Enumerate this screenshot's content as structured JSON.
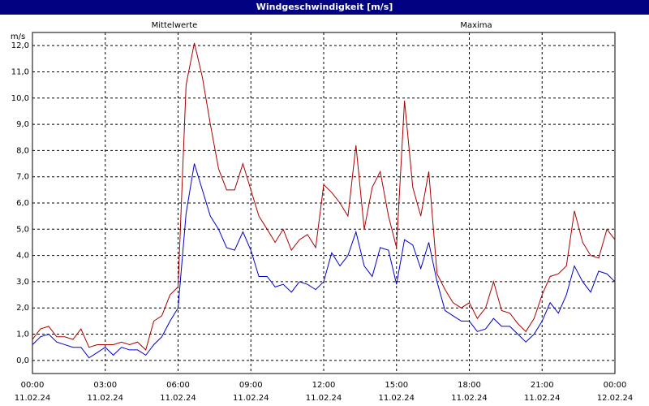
{
  "chart_data": {
    "type": "line",
    "title": "Windgeschwindigkeit [m/s]",
    "y_unit": "m/s",
    "grid": true,
    "x": [
      0,
      0.33,
      0.67,
      1,
      1.33,
      1.67,
      2,
      2.33,
      2.67,
      3,
      3.33,
      3.67,
      4,
      4.33,
      4.67,
      5,
      5.33,
      5.67,
      6,
      6.33,
      6.67,
      7,
      7.33,
      7.67,
      8,
      8.33,
      8.67,
      9,
      9.33,
      9.67,
      10,
      10.33,
      10.67,
      11,
      11.33,
      11.67,
      12,
      12.33,
      12.67,
      13,
      13.33,
      13.67,
      14,
      14.33,
      14.67,
      15,
      15.33,
      15.67,
      16,
      16.33,
      16.67,
      17,
      17.33,
      17.67,
      18,
      18.33,
      18.67,
      19,
      19.33,
      19.67,
      20,
      20.33,
      20.67,
      21,
      21.33,
      21.67,
      22,
      22.33,
      22.67,
      23,
      23.33,
      23.67,
      24
    ],
    "series": [
      {
        "name": "Mittelwerte",
        "color": "#0000cc",
        "values": [
          0.6,
          0.9,
          1.0,
          0.7,
          0.6,
          0.5,
          0.5,
          0.1,
          0.3,
          0.5,
          0.2,
          0.5,
          0.4,
          0.4,
          0.2,
          0.6,
          0.9,
          1.5,
          2.0,
          5.6,
          7.5,
          6.5,
          5.5,
          5.0,
          4.3,
          4.2,
          4.9,
          4.2,
          3.2,
          3.2,
          2.8,
          2.9,
          2.6,
          3.0,
          2.9,
          2.7,
          3.0,
          4.1,
          3.6,
          4.0,
          4.9,
          3.6,
          3.2,
          4.3,
          4.2,
          2.9,
          4.6,
          4.4,
          3.5,
          4.5,
          3.0,
          1.9,
          1.7,
          1.5,
          1.5,
          1.1,
          1.2,
          1.6,
          1.3,
          1.3,
          1.0,
          0.7,
          1.0,
          1.5,
          2.2,
          1.8,
          2.5,
          3.6,
          3.0,
          2.6,
          3.4,
          3.3,
          3.0
        ]
      },
      {
        "name": "Maxima",
        "color": "#aa0000",
        "values": [
          0.8,
          1.2,
          1.3,
          0.9,
          0.9,
          0.8,
          1.2,
          0.5,
          0.6,
          0.6,
          0.6,
          0.7,
          0.6,
          0.7,
          0.4,
          1.5,
          1.7,
          2.5,
          2.8,
          10.5,
          12.1,
          10.8,
          9.0,
          7.3,
          6.5,
          6.5,
          7.5,
          6.5,
          5.5,
          5.0,
          4.5,
          5.0,
          4.2,
          4.6,
          4.8,
          4.3,
          6.7,
          6.4,
          6.0,
          5.5,
          8.2,
          5.0,
          6.6,
          7.2,
          5.5,
          4.3,
          9.9,
          6.6,
          5.5,
          7.2,
          3.3,
          2.7,
          2.2,
          2.0,
          2.2,
          1.6,
          2.0,
          3.0,
          1.9,
          1.8,
          1.4,
          1.1,
          1.6,
          2.5,
          3.2,
          3.3,
          3.6,
          5.7,
          4.5,
          4.0,
          3.9,
          5.0,
          4.6
        ]
      }
    ],
    "xlim": [
      0,
      24
    ],
    "xticks": [
      {
        "value": 0,
        "label": "00:00"
      },
      {
        "value": 3,
        "label": "03:00"
      },
      {
        "value": 6,
        "label": "06:00"
      },
      {
        "value": 9,
        "label": "09:00"
      },
      {
        "value": 12,
        "label": "12:00"
      },
      {
        "value": 15,
        "label": "15:00"
      },
      {
        "value": 18,
        "label": "18:00"
      },
      {
        "value": 21,
        "label": "21:00"
      },
      {
        "value": 24,
        "label": "00:00"
      }
    ],
    "xtick_dates": [
      "11.02.24",
      "11.02.24",
      "11.02.24",
      "11.02.24",
      "11.02.24",
      "11.02.24",
      "11.02.24",
      "11.02.24",
      "12.02.24"
    ],
    "ylim": [
      -0.5,
      12.5
    ],
    "yticks": [
      {
        "value": 0,
        "label": "0,0"
      },
      {
        "value": 1,
        "label": "1,0"
      },
      {
        "value": 2,
        "label": "2,0"
      },
      {
        "value": 3,
        "label": "3,0"
      },
      {
        "value": 4,
        "label": "4,0"
      },
      {
        "value": 5,
        "label": "5,0"
      },
      {
        "value": 6,
        "label": "6,0"
      },
      {
        "value": 7,
        "label": "7,0"
      },
      {
        "value": 8,
        "label": "8,0"
      },
      {
        "value": 9,
        "label": "9,0"
      },
      {
        "value": 10,
        "label": "10,0"
      },
      {
        "value": 11,
        "label": "11,0"
      },
      {
        "value": 12,
        "label": "12,0"
      }
    ]
  }
}
